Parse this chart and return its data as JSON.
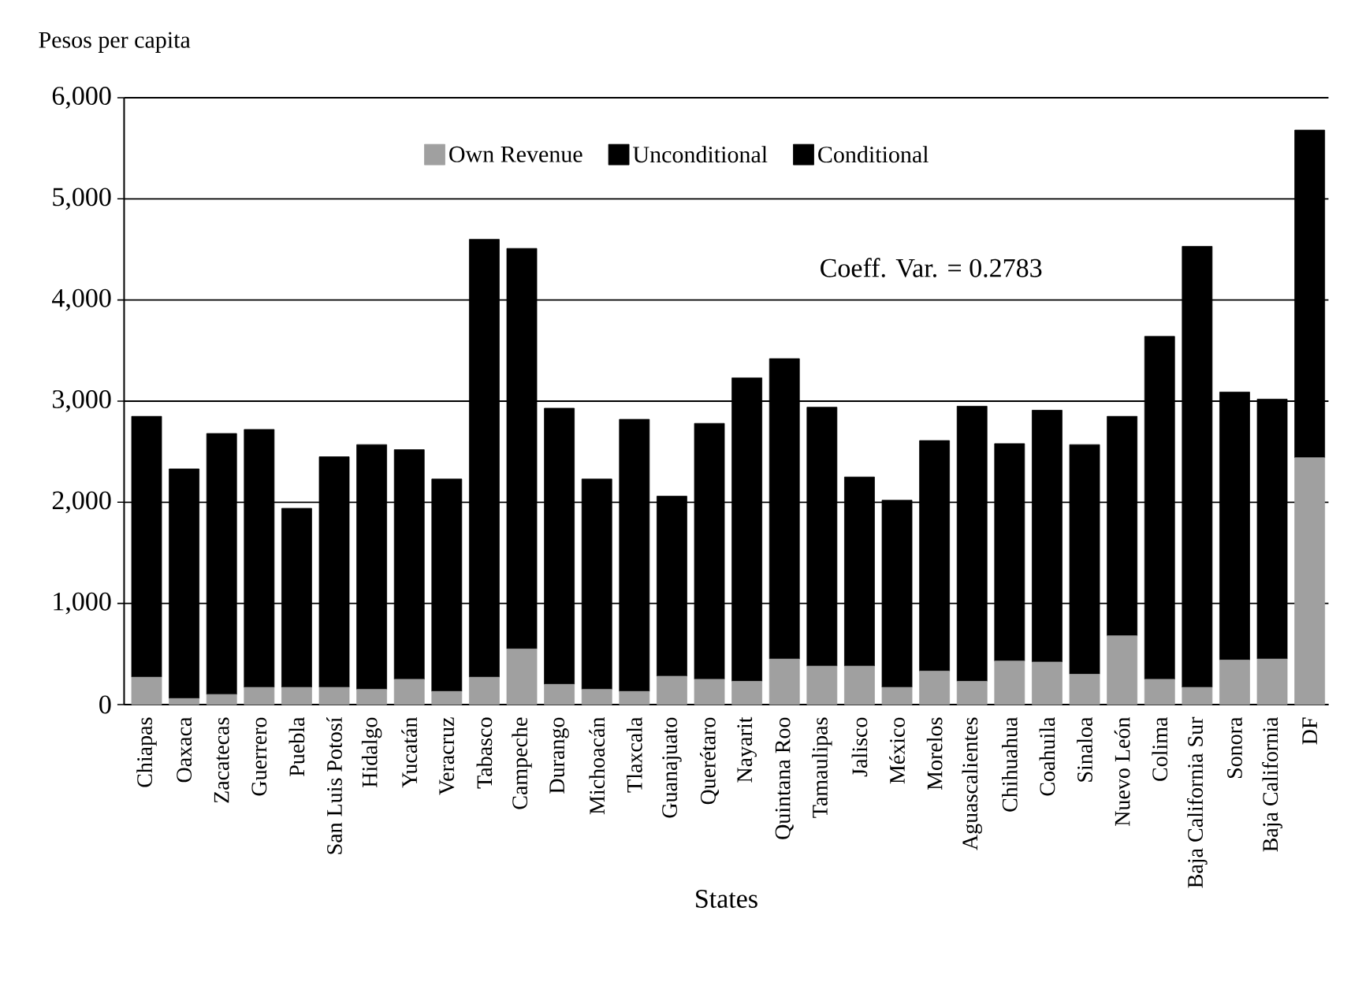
{
  "chart_data": {
    "type": "bar",
    "stacked": true,
    "xlabel": "States",
    "ylabel": "Pesos per capita",
    "annotations": [
      "Coeff. Var. = 0.2783"
    ],
    "categories": [
      "Chiapas",
      "Oaxaca",
      "Zacatecas",
      "Guerrero",
      "Puebla",
      "San Luis Potosí",
      "Hidalgo",
      "Yucatán",
      "Veracruz",
      "Tabasco",
      "Campeche",
      "Durango",
      "Michoacán",
      "Tlaxcala",
      "Guanajuato",
      "Querétaro",
      "Nayarit",
      "Quintana Roo",
      "Tamaulipas",
      "Jalisco",
      "México",
      "Morelos",
      "Aguascalientes",
      "Chihuahua",
      "Coahuila",
      "Sinaloa",
      "Nuevo León",
      "Colima",
      "Baja California Sur",
      "Sonora",
      "Baja California",
      "DF"
    ],
    "series": [
      {
        "name": "Own Revenue",
        "color": "#a0a0a0",
        "values": [
          270,
          60,
          100,
          170,
          170,
          170,
          150,
          250,
          130,
          270,
          550,
          200,
          150,
          130,
          280,
          250,
          230,
          450,
          380,
          380,
          170,
          330,
          230,
          430,
          420,
          300,
          680,
          250,
          170,
          440,
          450,
          2440
        ]
      },
      {
        "name": "Unconditional",
        "color": "#000000",
        "values": [
          2580,
          2270,
          2580,
          2550,
          1770,
          2280,
          2420,
          2270,
          2100,
          4330,
          3960,
          2730,
          2080,
          2690,
          1780,
          2530,
          3000,
          2970,
          2560,
          1870,
          1850,
          2280,
          2720,
          2150,
          2490,
          2270,
          2170,
          3390,
          4360,
          2650,
          2570,
          3240
        ]
      },
      {
        "name": "Conditional",
        "color": "#000000",
        "values": [
          null,
          null,
          null,
          null,
          null,
          null,
          null,
          null,
          null,
          null,
          null,
          null,
          null,
          null,
          null,
          null,
          null,
          null,
          null,
          null,
          null,
          null,
          null,
          null,
          null,
          null,
          null,
          null,
          null,
          null,
          null,
          null
        ]
      }
    ],
    "ylim": [
      0,
      6000
    ],
    "yticks": [
      {
        "value": 0,
        "label": "0"
      },
      {
        "value": 1000,
        "label": "1,000"
      },
      {
        "value": 2000,
        "label": "2,000"
      },
      {
        "value": 3000,
        "label": "3,000"
      },
      {
        "value": 4000,
        "label": "4,000"
      },
      {
        "value": 5000,
        "label": "5,000"
      },
      {
        "value": 6000,
        "label": "6,000"
      }
    ],
    "grid": "y",
    "legend": "top"
  }
}
